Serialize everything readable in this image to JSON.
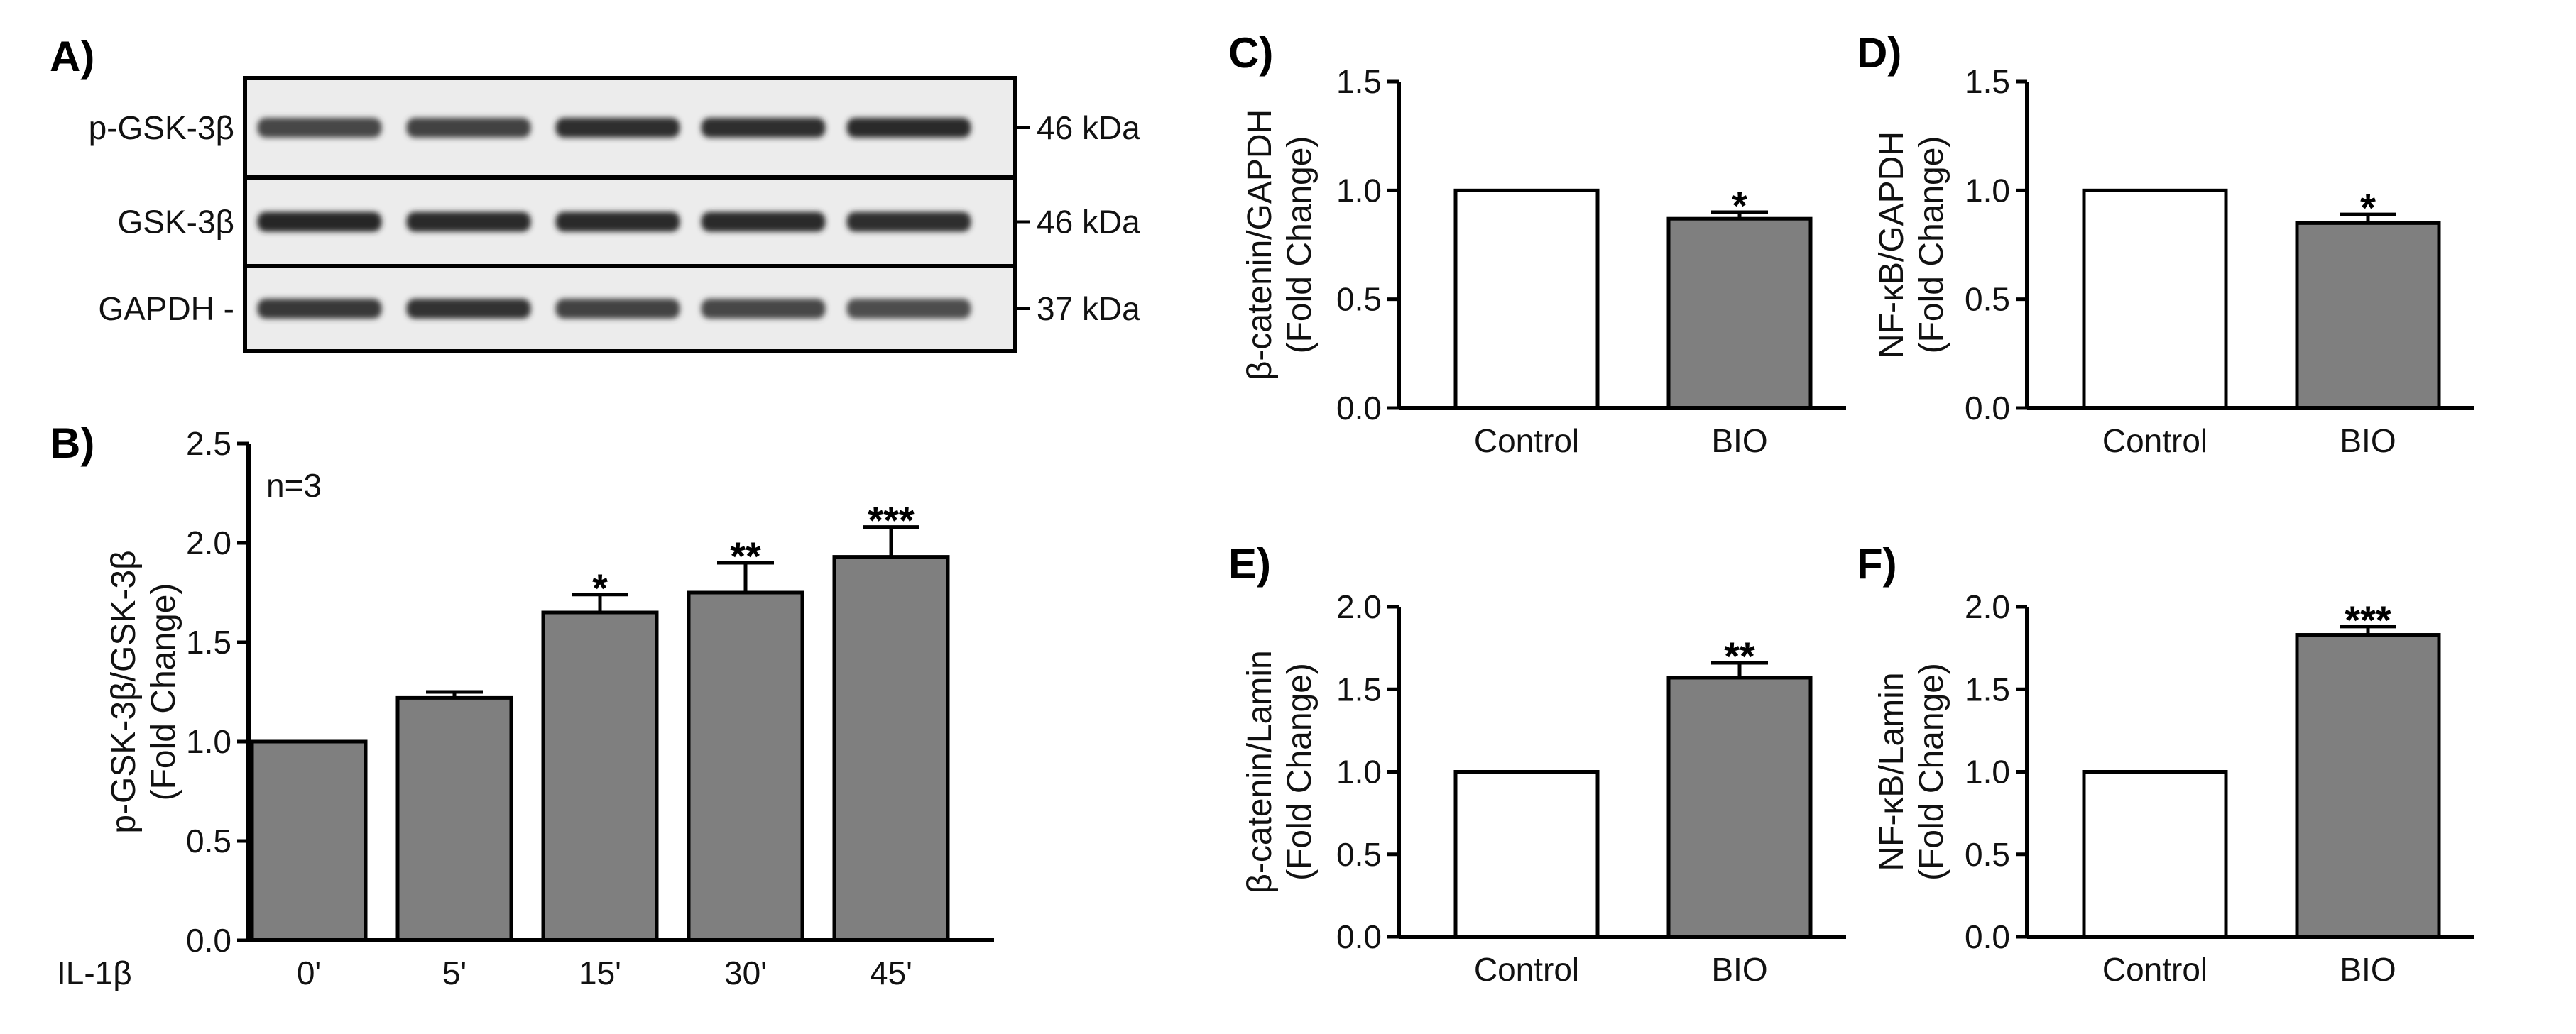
{
  "colors": {
    "bar_control": "#ffffff",
    "bar_treated": "#7f7f7f",
    "axis": "#000000"
  },
  "blot": {
    "panel_label": "A)",
    "rows": [
      {
        "label": "p-GSK-3β",
        "size_label": "46 kDa",
        "band_intensity": [
          0.72,
          0.74,
          0.82,
          0.82,
          0.84
        ]
      },
      {
        "label": "GSK-3β",
        "size_label": "46 kDa",
        "band_intensity": [
          0.85,
          0.83,
          0.84,
          0.83,
          0.82
        ]
      },
      {
        "label": "GAPDH -",
        "size_label": "37 kDa",
        "band_intensity": [
          0.78,
          0.8,
          0.74,
          0.72,
          0.7
        ]
      }
    ]
  },
  "chart_data": [
    {
      "panel_label": "B)",
      "type": "bar",
      "categories": [
        "0'",
        "5'",
        "15'",
        "30'",
        "45'"
      ],
      "category_header": "IL-1β",
      "values": [
        1.0,
        1.22,
        1.65,
        1.75,
        1.93
      ],
      "errors": [
        0,
        0.03,
        0.09,
        0.15,
        0.15
      ],
      "significance": [
        "",
        "",
        "*",
        "**",
        "***"
      ],
      "bar_colors": [
        "#7f7f7f",
        "#7f7f7f",
        "#7f7f7f",
        "#7f7f7f",
        "#7f7f7f"
      ],
      "ylabel": "p-GSK-3β/GSK-3β",
      "ylabel2": "(Fold Change)",
      "ylim": [
        0,
        2.5
      ],
      "yticks": [
        "0.0",
        "0.5",
        "1.0",
        "1.5",
        "2.0",
        "2.5"
      ],
      "annotation": "n=3"
    },
    {
      "panel_label": "C)",
      "type": "bar",
      "categories": [
        "Control",
        "BIO"
      ],
      "values": [
        1.0,
        0.87
      ],
      "errors": [
        0,
        0.03
      ],
      "significance": [
        "",
        "*"
      ],
      "bar_colors": [
        "#ffffff",
        "#7f7f7f"
      ],
      "ylabel": "β-catenin/GAPDH",
      "ylabel2": "(Fold Change)",
      "ylim": [
        0,
        1.5
      ],
      "yticks": [
        "0.0",
        "0.5",
        "1.0",
        "1.5"
      ]
    },
    {
      "panel_label": "D)",
      "type": "bar",
      "categories": [
        "Control",
        "BIO"
      ],
      "values": [
        1.0,
        0.85
      ],
      "errors": [
        0,
        0.04
      ],
      "significance": [
        "",
        "*"
      ],
      "bar_colors": [
        "#ffffff",
        "#7f7f7f"
      ],
      "ylabel": "NF-κB/GAPDH",
      "ylabel2": "(Fold Change)",
      "ylim": [
        0,
        1.5
      ],
      "yticks": [
        "0.0",
        "0.5",
        "1.0",
        "1.5"
      ]
    },
    {
      "panel_label": "E)",
      "type": "bar",
      "categories": [
        "Control",
        "BIO"
      ],
      "values": [
        1.0,
        1.57
      ],
      "errors": [
        0,
        0.09
      ],
      "significance": [
        "",
        "**"
      ],
      "bar_colors": [
        "#ffffff",
        "#7f7f7f"
      ],
      "ylabel": "β-catenin/Lamin",
      "ylabel2": "(Fold Change)",
      "ylim": [
        0,
        2.0
      ],
      "yticks": [
        "0.0",
        "0.5",
        "1.0",
        "1.5",
        "2.0"
      ]
    },
    {
      "panel_label": "F)",
      "type": "bar",
      "categories": [
        "Control",
        "BIO"
      ],
      "values": [
        1.0,
        1.83
      ],
      "errors": [
        0,
        0.05
      ],
      "significance": [
        "",
        "***"
      ],
      "bar_colors": [
        "#ffffff",
        "#7f7f7f"
      ],
      "ylabel": "NF-κB/Lamin",
      "ylabel2": "(Fold Change)",
      "ylim": [
        0,
        2.0
      ],
      "yticks": [
        "0.0",
        "0.5",
        "1.0",
        "1.5",
        "2.0"
      ]
    }
  ]
}
